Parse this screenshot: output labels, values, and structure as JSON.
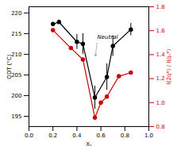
{
  "chart_data": {
    "type": "line",
    "xlabel": "Xₛ",
    "ylabel": "ODT (°C)",
    "y2label": "I(2q*) / I(qₛ*)",
    "xlim": [
      0.0,
      1.0
    ],
    "xticks": [
      {
        "value": 0.0,
        "label": "0.0"
      },
      0.2,
      0.4,
      0.6,
      0.8,
      {
        "value": 1.0,
        "label": "1.0"
      }
    ],
    "ylim": [
      192.5,
      221.5
    ],
    "yticks": [
      195,
      200,
      205,
      210,
      215,
      220
    ],
    "y2lim": [
      0.8,
      1.8
    ],
    "y2ticks": [
      0.8,
      {
        "value": 1.0,
        "label": "1.0"
      },
      1.2,
      1.4,
      1.6,
      1.8
    ],
    "series": [
      {
        "x": [
          0.2,
          0.25,
          0.4,
          0.45,
          0.55,
          0.65,
          0.7,
          0.85
        ],
        "values": [
          217.3,
          217.8,
          213.0,
          212.5,
          199.5,
          204.5,
          212.0,
          216.0
        ],
        "errors": [
          0.4,
          0.5,
          1.8,
          2.5,
          2.8,
          3.2,
          2.5,
          1.5
        ],
        "color": "#000000",
        "marker": "circle",
        "line_style": "solid"
      },
      {
        "x": [
          0.2,
          0.35,
          0.45,
          0.55,
          0.6,
          0.65,
          0.75,
          0.85
        ],
        "values": [
          1.605,
          1.455,
          1.36,
          0.875,
          1.0,
          1.05,
          1.22,
          1.25
        ],
        "color": "#cc0000",
        "marker": "circle",
        "line_style": "solid",
        "axis": "y2"
      }
    ],
    "annotations": [
      {
        "text": "Neutral",
        "x": 0.57,
        "y": 213.5,
        "arrow_x": 0.555,
        "arrow_y": 209.5
      }
    ]
  }
}
